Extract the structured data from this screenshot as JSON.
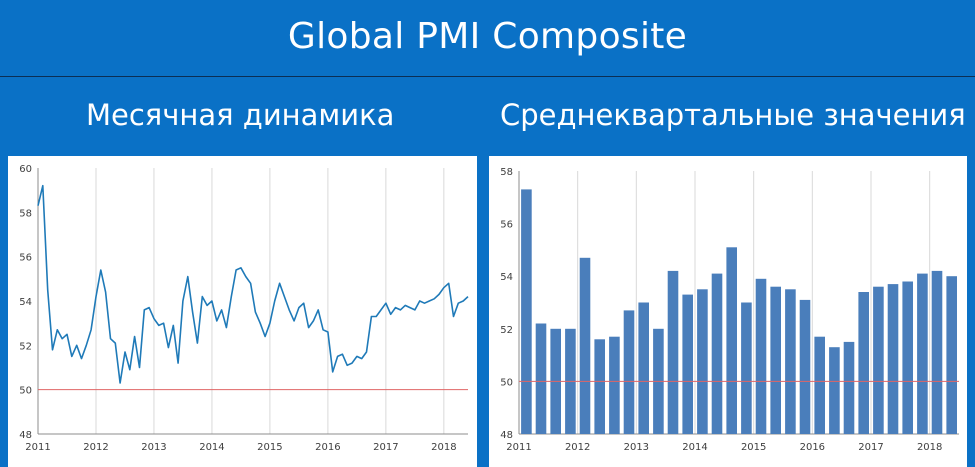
{
  "title": "Global PMI Composite",
  "subtitles": {
    "left": "Месячная динамика",
    "right": "Среднеквартальные значения"
  },
  "colors": {
    "background": "#0a71c6",
    "line": "#1f7ab8",
    "bar": "#4a7ebb",
    "reference": "#e06666",
    "grid": "#d9d9d9"
  },
  "chart_data": [
    {
      "type": "line",
      "x_ticks": [
        "2011",
        "2012",
        "2013",
        "2014",
        "2015",
        "2016",
        "2017",
        "2018"
      ],
      "y_ticks": [
        "48",
        "50",
        "52",
        "54",
        "56",
        "58",
        "60"
      ],
      "ylim": [
        48,
        60
      ],
      "xlim": [
        2011.0,
        2018.58
      ],
      "reference_line": 50,
      "grid": "vertical",
      "series": [
        {
          "values": [
            58.3,
            59.2,
            54.5,
            51.8,
            52.7,
            52.3,
            52.5,
            51.5,
            52.0,
            51.4,
            52.0,
            52.7,
            54.2,
            55.4,
            54.4,
            52.3,
            52.1,
            50.3,
            51.7,
            50.9,
            52.4,
            51.0,
            53.6,
            53.7,
            53.2,
            52.9,
            53.0,
            51.9,
            52.9,
            51.2,
            54.0,
            55.1,
            53.5,
            52.1,
            54.2,
            53.8,
            54.0,
            53.1,
            53.6,
            52.8,
            54.2,
            55.4,
            55.5,
            55.1,
            54.8,
            53.5,
            53.0,
            52.4,
            53.0,
            54.0,
            54.8,
            54.2,
            53.6,
            53.1,
            53.7,
            53.9,
            52.8,
            53.1,
            53.6,
            52.7,
            52.6,
            50.8,
            51.5,
            51.6,
            51.1,
            51.2,
            51.5,
            51.4,
            51.7,
            53.3,
            53.3,
            53.6,
            53.9,
            53.4,
            53.7,
            53.6,
            53.8,
            53.7,
            53.6,
            54.0,
            53.9,
            54.0,
            54.1,
            54.3,
            54.6,
            54.8,
            53.3,
            53.9,
            54.0,
            54.2
          ]
        }
      ]
    },
    {
      "type": "bar",
      "x_ticks": [
        "2011",
        "2012",
        "2013",
        "2014",
        "2015",
        "2016",
        "2017",
        "2018"
      ],
      "y_ticks": [
        "48",
        "50",
        "52",
        "54",
        "56",
        "58"
      ],
      "ylim": [
        48,
        58
      ],
      "reference_line": 50,
      "grid": "vertical",
      "series": [
        {
          "values": [
            57.3,
            52.2,
            52.0,
            52.0,
            54.7,
            51.6,
            51.7,
            52.7,
            53.0,
            52.0,
            54.2,
            53.3,
            53.5,
            54.1,
            55.1,
            53.0,
            53.9,
            53.6,
            53.5,
            53.1,
            51.7,
            51.3,
            51.5,
            53.4,
            53.6,
            53.7,
            53.8,
            54.1,
            54.2,
            54.0
          ]
        }
      ]
    }
  ]
}
